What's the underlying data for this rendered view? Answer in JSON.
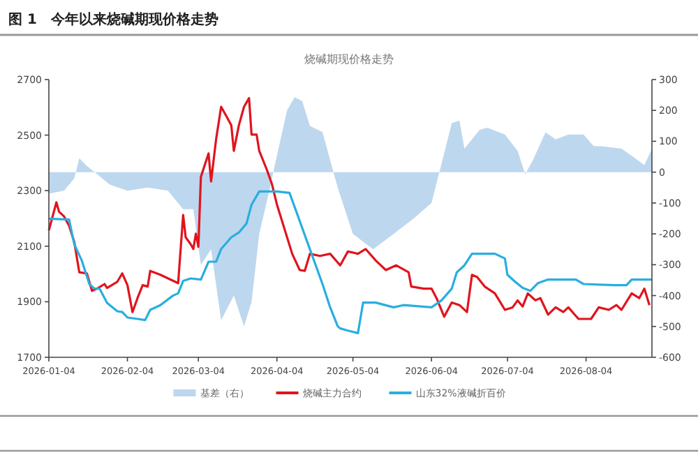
{
  "chart_data": {
    "type": "line",
    "title": "图 1　今年以来烧碱期现价格走势",
    "subtitle": "烧碱期现价格走势",
    "legend": "bottom",
    "marker": "none",
    "xlim": [
      "2026-01-04",
      "2026-08-30"
    ],
    "xticks": [
      "2026-01-04",
      "2026-02-04",
      "2026-03-04",
      "2026-04-04",
      "2026-05-04",
      "2026-06-04",
      "2026-07-04",
      "2026-08-04"
    ],
    "ylim": [
      1700,
      2700
    ],
    "yticks": [
      1700,
      1900,
      2100,
      2300,
      2500,
      2700
    ],
    "y2lim": [
      -600,
      300
    ],
    "y2ticks": [
      -600,
      -500,
      -400,
      -300,
      -200,
      -100,
      0,
      100,
      200,
      300
    ],
    "series": [
      {
        "name": "基差（右）",
        "type": "area",
        "axis": "y2",
        "color": "#bdd7ee",
        "x": [
          "2026-01-04",
          "2026-01-10",
          "2026-01-14",
          "2026-01-16",
          "2026-01-19",
          "2026-01-22",
          "2026-01-28",
          "2026-02-04",
          "2026-02-12",
          "2026-02-20",
          "2026-02-26",
          "2026-03-02",
          "2026-03-05",
          "2026-03-09",
          "2026-03-13",
          "2026-03-18",
          "2026-03-22",
          "2026-03-25",
          "2026-03-28",
          "2026-04-01",
          "2026-04-04",
          "2026-04-08",
          "2026-04-11",
          "2026-04-14",
          "2026-04-17",
          "2026-04-22",
          "2026-04-28",
          "2026-05-04",
          "2026-05-12",
          "2026-05-20",
          "2026-05-28",
          "2026-06-04",
          "2026-06-09",
          "2026-06-12",
          "2026-06-15",
          "2026-06-17",
          "2026-06-23",
          "2026-06-26",
          "2026-07-03",
          "2026-07-08",
          "2026-07-11",
          "2026-07-14",
          "2026-07-19",
          "2026-07-23",
          "2026-07-28",
          "2026-08-03",
          "2026-08-07",
          "2026-08-10",
          "2026-08-18",
          "2026-08-22",
          "2026-08-27",
          "2026-08-30"
        ],
        "values": [
          -70,
          -60,
          -20,
          45,
          20,
          0,
          -40,
          -60,
          -50,
          -60,
          -120,
          -120,
          -300,
          -250,
          -480,
          -400,
          -500,
          -420,
          -200,
          -60,
          54,
          200,
          243,
          230,
          150,
          130,
          -50,
          -200,
          -250,
          -200,
          -150,
          -100,
          61,
          159,
          167,
          76,
          137,
          144,
          122,
          69,
          -7,
          38,
          129,
          106,
          122,
          122,
          84,
          84,
          76,
          53,
          23,
          76
        ]
      },
      {
        "name": "烧碱主力合约",
        "color": "#e0141e",
        "x": [
          "2026-01-04",
          "2026-01-07",
          "2026-01-08",
          "2026-01-10",
          "2026-01-12",
          "2026-01-14",
          "2026-01-16",
          "2026-01-19",
          "2026-01-21",
          "2026-01-23",
          "2026-01-26",
          "2026-01-27",
          "2026-01-31",
          "2026-02-02",
          "2026-02-04",
          "2026-02-06",
          "2026-02-08",
          "2026-02-10",
          "2026-02-12",
          "2026-02-13",
          "2026-02-17",
          "2026-02-24",
          "2026-02-26",
          "2026-02-27",
          "2026-03-01",
          "2026-03-02",
          "2026-03-03",
          "2026-03-04",
          "2026-03-05",
          "2026-03-08",
          "2026-03-09",
          "2026-03-11",
          "2026-03-13",
          "2026-03-15",
          "2026-03-17",
          "2026-03-18",
          "2026-03-20",
          "2026-03-22",
          "2026-03-24",
          "2026-03-25",
          "2026-03-27",
          "2026-03-28",
          "2026-03-31",
          "2026-04-02",
          "2026-04-04",
          "2026-04-10",
          "2026-04-13",
          "2026-04-15",
          "2026-04-17",
          "2026-04-21",
          "2026-04-25",
          "2026-04-29",
          "2026-05-02",
          "2026-05-06",
          "2026-05-09",
          "2026-05-13",
          "2026-05-17",
          "2026-05-21",
          "2026-05-26",
          "2026-05-27",
          "2026-06-01",
          "2026-06-04",
          "2026-06-06",
          "2026-06-09",
          "2026-06-12",
          "2026-06-15",
          "2026-06-18",
          "2026-06-20",
          "2026-06-22",
          "2026-06-25",
          "2026-06-29",
          "2026-07-03",
          "2026-07-06",
          "2026-07-08",
          "2026-07-10",
          "2026-07-12",
          "2026-07-15",
          "2026-07-17",
          "2026-07-20",
          "2026-07-23",
          "2026-07-26",
          "2026-07-28",
          "2026-08-01",
          "2026-08-06",
          "2026-08-09",
          "2026-08-13",
          "2026-08-16",
          "2026-08-18",
          "2026-08-22",
          "2026-08-25",
          "2026-08-27",
          "2026-08-29"
        ],
        "values": [
          2157,
          2258,
          2224,
          2207,
          2174,
          2115,
          2006,
          2002,
          1939,
          1947,
          1964,
          1950,
          1972,
          2002,
          1960,
          1863,
          1913,
          1960,
          1955,
          2011,
          1997,
          1967,
          2212,
          2132,
          2107,
          2090,
          2145,
          2098,
          2350,
          2434,
          2333,
          2485,
          2602,
          2569,
          2535,
          2443,
          2535,
          2602,
          2633,
          2502,
          2502,
          2443,
          2376,
          2325,
          2250,
          2073,
          2014,
          2011,
          2073,
          2065,
          2073,
          2031,
          2081,
          2073,
          2090,
          2048,
          2014,
          2031,
          2006,
          1955,
          1947,
          1947,
          1913,
          1846,
          1897,
          1888,
          1863,
          1997,
          1989,
          1955,
          1930,
          1871,
          1880,
          1905,
          1883,
          1930,
          1905,
          1913,
          1854,
          1880,
          1863,
          1880,
          1838,
          1838,
          1880,
          1871,
          1888,
          1871,
          1930,
          1913,
          1947,
          1888
        ]
      },
      {
        "name": "山东32%液碱折百价",
        "color": "#29aee0",
        "x": [
          "2026-01-04",
          "2026-01-12",
          "2026-01-14",
          "2026-01-17",
          "2026-01-20",
          "2026-01-22",
          "2026-01-24",
          "2026-01-27",
          "2026-01-31",
          "2026-02-02",
          "2026-02-04",
          "2026-02-08",
          "2026-02-11",
          "2026-02-13",
          "2026-02-17",
          "2026-02-22",
          "2026-02-24",
          "2026-02-26",
          "2026-03-01",
          "2026-03-05",
          "2026-03-08",
          "2026-03-11",
          "2026-03-13",
          "2026-03-17",
          "2026-03-20",
          "2026-03-23",
          "2026-03-25",
          "2026-03-28",
          "2026-04-04",
          "2026-04-09",
          "2026-04-20",
          "2026-04-22",
          "2026-04-25",
          "2026-04-28",
          "2026-04-29",
          "2026-05-02",
          "2026-05-06",
          "2026-05-08",
          "2026-05-13",
          "2026-05-20",
          "2026-05-24",
          "2026-06-04",
          "2026-06-08",
          "2026-06-12",
          "2026-06-14",
          "2026-06-17",
          "2026-06-20",
          "2026-06-29",
          "2026-07-03",
          "2026-07-04",
          "2026-07-07",
          "2026-07-10",
          "2026-07-13",
          "2026-07-16",
          "2026-07-20",
          "2026-07-31",
          "2026-08-03",
          "2026-08-15",
          "2026-08-20",
          "2026-08-22",
          "2026-08-30"
        ],
        "values": [
          2199,
          2196,
          2107,
          2048,
          1964,
          1947,
          1947,
          1896,
          1866,
          1863,
          1843,
          1838,
          1834,
          1871,
          1888,
          1922,
          1930,
          1975,
          1984,
          1980,
          2044,
          2044,
          2090,
          2132,
          2149,
          2182,
          2250,
          2297,
          2297,
          2292,
          2014,
          1964,
          1880,
          1812,
          1804,
          1796,
          1787,
          1897,
          1897,
          1880,
          1888,
          1880,
          1905,
          1947,
          2006,
          2031,
          2073,
          2073,
          2056,
          1997,
          1972,
          1950,
          1939,
          1967,
          1980,
          1980,
          1964,
          1960,
          1960,
          1980,
          1980
        ]
      }
    ]
  }
}
